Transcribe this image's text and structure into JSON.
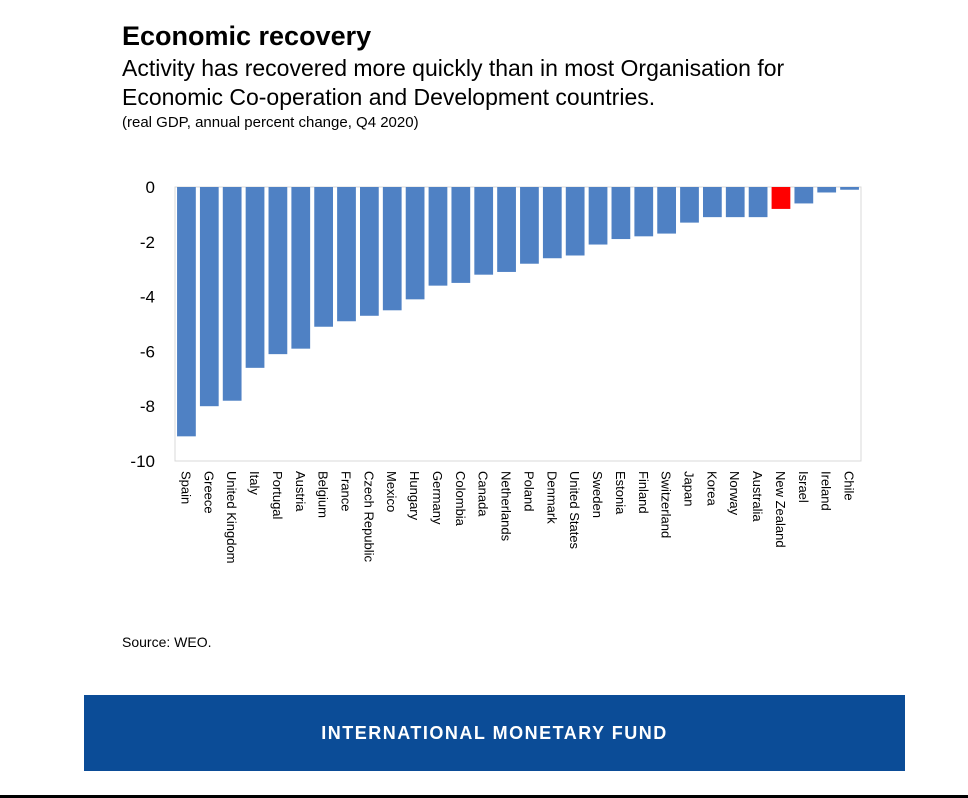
{
  "header": {
    "title": "Economic recovery",
    "subtitle": "Activity has recovered more quickly than in most Organisation for Economic Co-operation and Development countries.",
    "note": "(real GDP, annual percent change, Q4 2020)"
  },
  "footer": {
    "source": "Source: WEO.",
    "banner_text": "INTERNATIONAL MONETARY FUND",
    "banner_color": "#0B4C97"
  },
  "chart_data": {
    "type": "bar",
    "categories": [
      "Spain",
      "Greece",
      "United Kingdom",
      "Italy",
      "Portugal",
      "Austria",
      "Belgium",
      "France",
      "Czech Republic",
      "Mexico",
      "Hungary",
      "Germany",
      "Colombia",
      "Canada",
      "Netherlands",
      "Poland",
      "Denmark",
      "United States",
      "Sweden",
      "Estonia",
      "Finland",
      "Switzerland",
      "Japan",
      "Korea",
      "Norway",
      "Australia",
      "New Zealand",
      "Israel",
      "Ireland",
      "Chile"
    ],
    "values": [
      -9.1,
      -8.0,
      -7.8,
      -6.6,
      -6.1,
      -5.9,
      -5.1,
      -4.9,
      -4.7,
      -4.5,
      -4.1,
      -3.6,
      -3.5,
      -3.2,
      -3.1,
      -2.8,
      -2.6,
      -2.5,
      -2.1,
      -1.9,
      -1.8,
      -1.7,
      -1.3,
      -1.1,
      -1.1,
      -1.1,
      -0.8,
      -0.6,
      -0.2,
      -0.1
    ],
    "highlight": "New Zealand",
    "colors": {
      "bar": "#4F81C4",
      "highlight": "#FF0000"
    },
    "ylim": [
      -10,
      0
    ],
    "yticks": [
      0,
      -2,
      -4,
      -6,
      -8,
      -10
    ],
    "title": "",
    "xlabel": "",
    "ylabel": "",
    "grid": false,
    "legend": "none"
  }
}
